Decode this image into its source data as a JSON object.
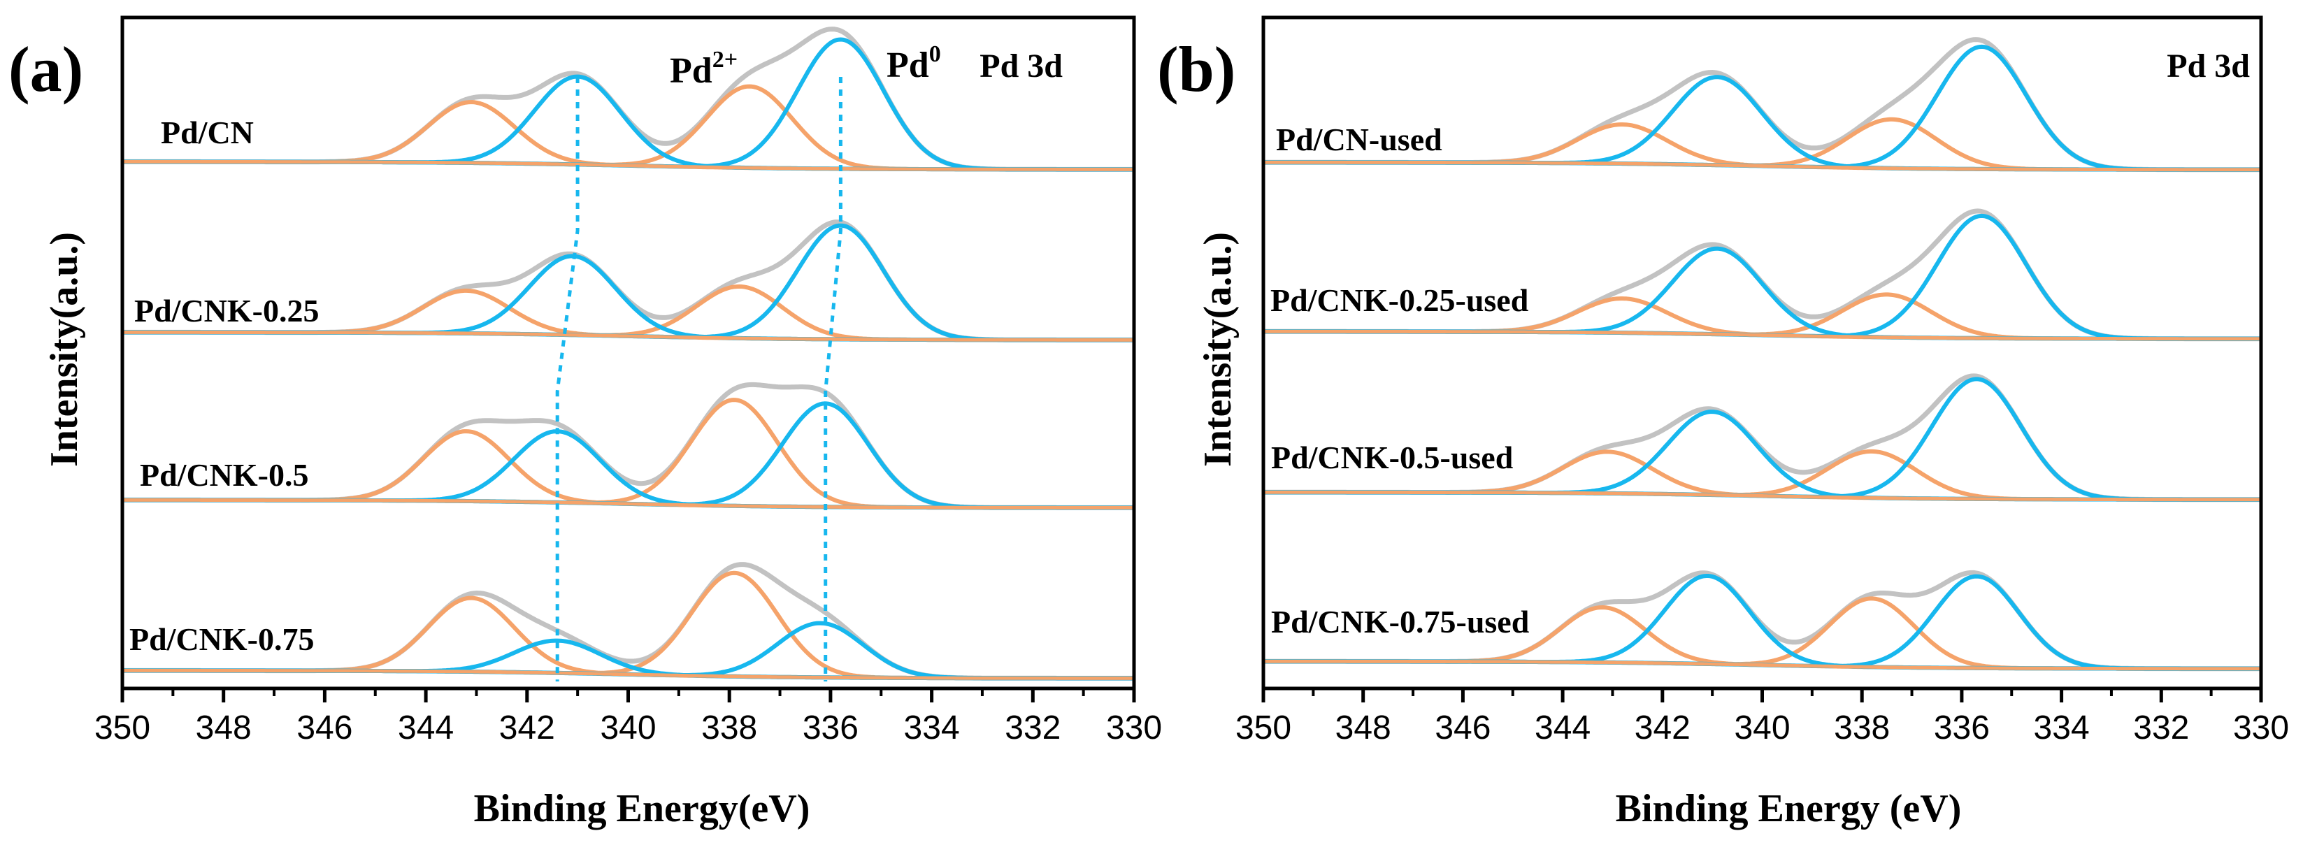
{
  "chart_data": [
    {
      "panel_label": "(a)",
      "type": "line",
      "title": "Pd 3d",
      "xlabel": "Binding Energy(eV)",
      "ylabel": "Intensity(a.u.)",
      "xlim": [
        350,
        330
      ],
      "xticks": [
        "350",
        "348",
        "346",
        "344",
        "342",
        "340",
        "338",
        "336",
        "334",
        "332",
        "330"
      ],
      "annotations": {
        "pd2": {
          "base": "Pd",
          "sup": "2+",
          "color": "#F5A36A"
        },
        "pd0": {
          "base": "Pd",
          "sup": "0",
          "color": "#17B7EE"
        }
      },
      "guide_lines": [
        {
          "name": "pd0-3d3/2",
          "values": [
            341.0,
            341.0,
            341.4,
            341.4
          ]
        },
        {
          "name": "pd0-3d5/2",
          "values": [
            335.8,
            335.8,
            336.1,
            336.1
          ]
        }
      ],
      "series": [
        {
          "name": "Pd/CN",
          "pd0_bes": [
            335.8,
            341.0
          ],
          "pd0_heights": [
            1.0,
            0.68
          ],
          "pd2_bes": [
            337.6,
            343.1
          ],
          "pd2_heights": [
            0.63,
            0.47
          ],
          "fwhm": 2.0
        },
        {
          "name": "Pd/CNK-0.25",
          "pd0_bes": [
            335.8,
            341.1
          ],
          "pd0_heights": [
            0.88,
            0.61
          ],
          "pd2_bes": [
            337.8,
            343.2
          ],
          "pd2_heights": [
            0.4,
            0.33
          ],
          "fwhm": 2.0
        },
        {
          "name": "Pd/CNK-0.5",
          "pd0_bes": [
            336.1,
            341.4
          ],
          "pd0_heights": [
            0.8,
            0.55
          ],
          "pd2_bes": [
            337.9,
            343.2
          ],
          "pd2_heights": [
            0.82,
            0.54
          ],
          "fwhm": 2.0
        },
        {
          "name": "Pd/CNK-0.75",
          "pd0_bes": [
            336.2,
            341.4
          ],
          "pd0_heights": [
            0.42,
            0.25
          ],
          "pd2_bes": [
            337.9,
            343.1
          ],
          "pd2_heights": [
            0.8,
            0.57
          ],
          "fwhm": 2.0
        }
      ]
    },
    {
      "panel_label": "(b)",
      "type": "line",
      "title": "Pd 3d",
      "xlabel": "Binding Energy (eV)",
      "ylabel": "Intensity(a.u.)",
      "xlim": [
        350,
        330
      ],
      "xticks": [
        "350",
        "348",
        "346",
        "344",
        "342",
        "340",
        "338",
        "336",
        "334",
        "332",
        "330"
      ],
      "series": [
        {
          "name": "Pd/CN-used",
          "pd0_bes": [
            335.6,
            340.9
          ],
          "pd0_heights": [
            1.0,
            0.72
          ],
          "pd2_bes": [
            337.4,
            342.8
          ],
          "pd2_heights": [
            0.4,
            0.32
          ],
          "fwhm": 2.1
        },
        {
          "name": "Pd/CNK-0.25-used",
          "pd0_bes": [
            335.6,
            340.9
          ],
          "pd0_heights": [
            1.0,
            0.7
          ],
          "pd2_bes": [
            337.5,
            342.8
          ],
          "pd2_heights": [
            0.35,
            0.28
          ],
          "fwhm": 2.1
        },
        {
          "name": "Pd/CNK-0.5-used",
          "pd0_bes": [
            335.7,
            341.0
          ],
          "pd0_heights": [
            0.98,
            0.68
          ],
          "pd2_bes": [
            337.8,
            343.1
          ],
          "pd2_heights": [
            0.38,
            0.34
          ],
          "fwhm": 2.1
        },
        {
          "name": "Pd/CNK-0.75-used",
          "pd0_bes": [
            335.7,
            341.1
          ],
          "pd0_heights": [
            0.75,
            0.72
          ],
          "pd2_bes": [
            337.8,
            343.2
          ],
          "pd2_heights": [
            0.56,
            0.45
          ],
          "fwhm": 2.0
        }
      ]
    }
  ],
  "colors": {
    "pd0": "#17B7EE",
    "pd2": "#F5A36A",
    "envelope": "#C2C2C2",
    "guide": "#17B7EE",
    "axis": "#000000"
  }
}
